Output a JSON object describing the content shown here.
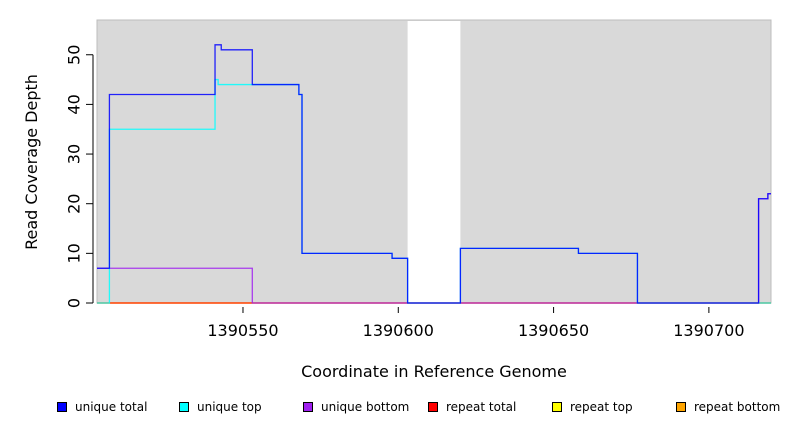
{
  "chart_data": {
    "type": "line",
    "title": "",
    "xlabel": "Coordinate in Reference Genome",
    "ylabel": "Read Coverage Depth",
    "xlim": [
      1390503,
      1390720
    ],
    "ylim": [
      0,
      57
    ],
    "x_ticks": [
      1390550,
      1390600,
      1390650,
      1390700
    ],
    "y_ticks": [
      0,
      10,
      20,
      30,
      40,
      50
    ],
    "grid": false,
    "background_color": "#d9d9d9",
    "unshaded_regions": [
      [
        1390603,
        1390620
      ]
    ],
    "legend_position": "bottom",
    "series": [
      {
        "name": "unique total",
        "color": "#0000ff",
        "points": [
          [
            1390503,
            7
          ],
          [
            1390507,
            7
          ],
          [
            1390507,
            42
          ],
          [
            1390541,
            42
          ],
          [
            1390541,
            52
          ],
          [
            1390543,
            52
          ],
          [
            1390543,
            51
          ],
          [
            1390553,
            51
          ],
          [
            1390553,
            44
          ],
          [
            1390568,
            44
          ],
          [
            1390568,
            42
          ],
          [
            1390569,
            42
          ],
          [
            1390569,
            10
          ],
          [
            1390598,
            10
          ],
          [
            1390598,
            9
          ],
          [
            1390603,
            9
          ],
          [
            1390603,
            0
          ],
          [
            1390620,
            0
          ],
          [
            1390620,
            11
          ],
          [
            1390658,
            11
          ],
          [
            1390658,
            10
          ],
          [
            1390677,
            10
          ],
          [
            1390677,
            0
          ],
          [
            1390716,
            0
          ],
          [
            1390716,
            21
          ],
          [
            1390719,
            21
          ],
          [
            1390719,
            22
          ],
          [
            1390720,
            22
          ]
        ]
      },
      {
        "name": "unique top",
        "color": "#00ffff",
        "points": [
          [
            1390503,
            0
          ],
          [
            1390507,
            0
          ],
          [
            1390507,
            35
          ],
          [
            1390541,
            35
          ],
          [
            1390541,
            45
          ],
          [
            1390542,
            45
          ],
          [
            1390542,
            44
          ],
          [
            1390568,
            44
          ],
          [
            1390568,
            42
          ],
          [
            1390569,
            42
          ],
          [
            1390569,
            10
          ],
          [
            1390598,
            10
          ],
          [
            1390598,
            9
          ],
          [
            1390603,
            9
          ],
          [
            1390603,
            0
          ],
          [
            1390620,
            0
          ],
          [
            1390620,
            11
          ],
          [
            1390658,
            11
          ],
          [
            1390658,
            10
          ],
          [
            1390677,
            10
          ],
          [
            1390677,
            0
          ],
          [
            1390720,
            0
          ]
        ]
      },
      {
        "name": "unique bottom",
        "color": "#a020f0",
        "points": [
          [
            1390503,
            7
          ],
          [
            1390553,
            7
          ],
          [
            1390553,
            0
          ],
          [
            1390716,
            0
          ],
          [
            1390716,
            21
          ],
          [
            1390719,
            21
          ],
          [
            1390719,
            22
          ],
          [
            1390720,
            22
          ]
        ]
      },
      {
        "name": "repeat total",
        "color": "#ff0000",
        "points": [
          [
            1390503,
            0
          ],
          [
            1390720,
            0
          ]
        ]
      },
      {
        "name": "repeat top",
        "color": "#ffff00",
        "points": [
          [
            1390503,
            0
          ],
          [
            1390720,
            0
          ]
        ]
      },
      {
        "name": "repeat bottom",
        "color": "#ffa500",
        "points": [
          [
            1390503,
            0
          ],
          [
            1390720,
            0
          ]
        ]
      }
    ]
  }
}
